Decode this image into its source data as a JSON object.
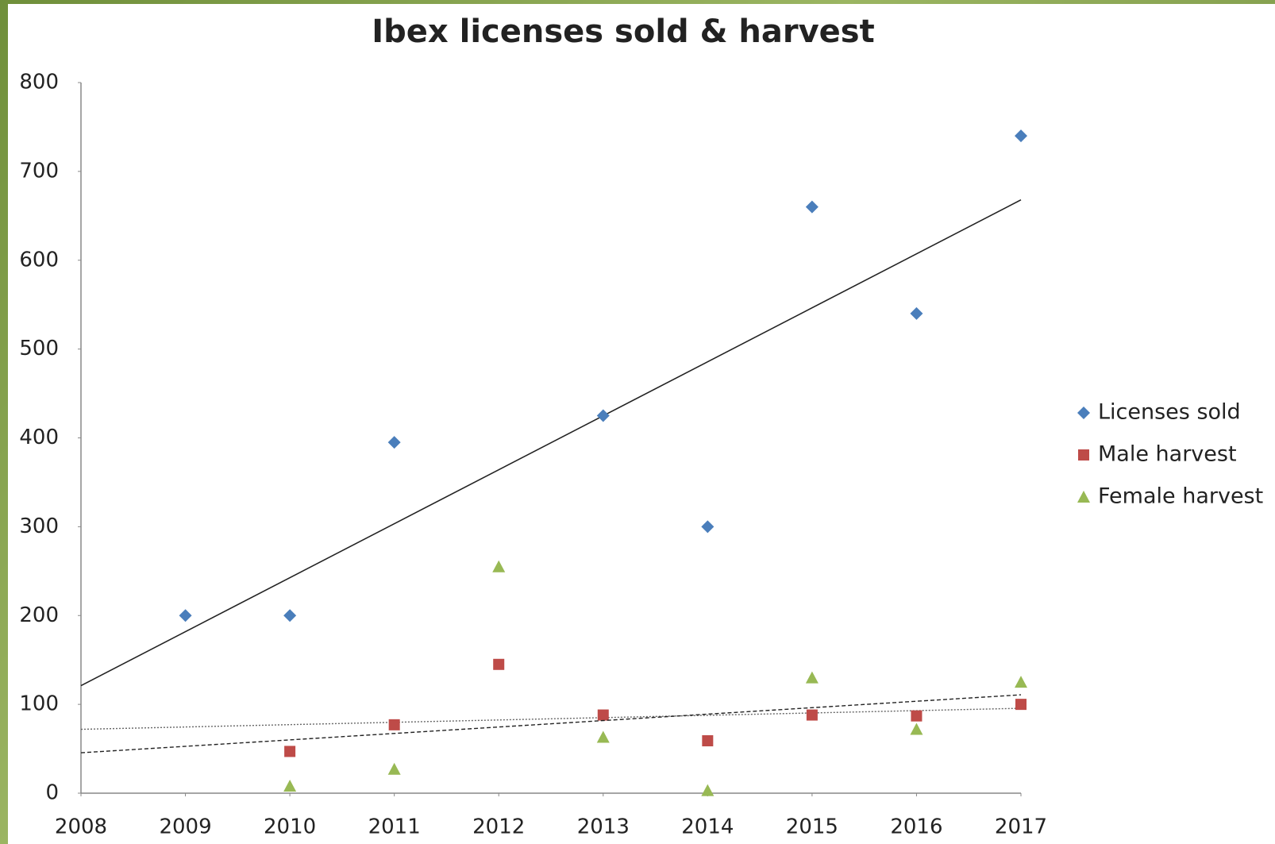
{
  "chart_data": {
    "type": "scatter",
    "title": "Ibex licenses sold & harvest",
    "x": [
      2009,
      2010,
      2011,
      2012,
      2013,
      2014,
      2015,
      2016,
      2017
    ],
    "series": [
      {
        "name": "Licenses sold",
        "color": "#4a7ebb",
        "marker": "diamond",
        "trendline": "solid",
        "values": [
          200,
          200,
          395,
          null,
          425,
          300,
          660,
          540,
          740
        ]
      },
      {
        "name": "Male harvest",
        "color": "#be4b48",
        "marker": "square",
        "trendline": "dotted",
        "values": [
          null,
          47,
          77,
          145,
          88,
          59,
          88,
          87,
          100
        ]
      },
      {
        "name": "Female harvest",
        "color": "#98b954",
        "marker": "triangle",
        "trendline": "dashed",
        "values": [
          null,
          8,
          27,
          255,
          63,
          3,
          130,
          72,
          125
        ]
      }
    ],
    "xlim": [
      2008,
      2017
    ],
    "xticks": [
      2008,
      2009,
      2010,
      2011,
      2012,
      2013,
      2014,
      2015,
      2016,
      2017
    ],
    "ylim": [
      0,
      800
    ],
    "yticks": [
      0,
      100,
      200,
      300,
      400,
      500,
      600,
      700,
      800
    ],
    "legend": "right"
  }
}
